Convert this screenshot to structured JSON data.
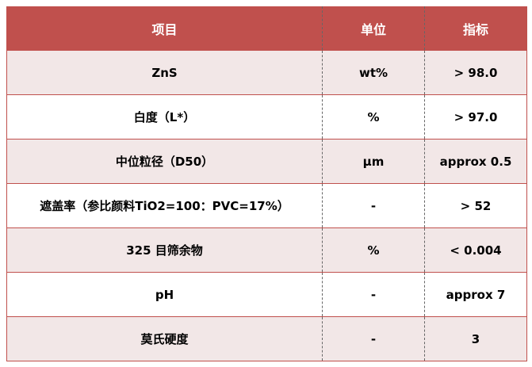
{
  "header": {
    "item": "项目",
    "unit": "单位",
    "spec": "指标"
  },
  "rows": [
    {
      "item": "ZnS",
      "unit": "wt%",
      "spec": "> 98.0"
    },
    {
      "item": "白度（L*）",
      "unit": "%",
      "spec": "> 97.0"
    },
    {
      "item": "中位粒径（D50）",
      "unit": "µm",
      "spec": "approx 0.5"
    },
    {
      "item": "遮盖率（参比颜料TiO2=100：PVC=17%）",
      "unit": "-",
      "spec": "> 52"
    },
    {
      "item": "325 目筛余物",
      "unit": "%",
      "spec": "< 0.004"
    },
    {
      "item": "pH",
      "unit": "-",
      "spec": "approx 7"
    },
    {
      "item": "莫氏硬度",
      "unit": "-",
      "spec": "3"
    }
  ],
  "colors": {
    "header": "#c0504d",
    "row_alt": "#f2e7e7"
  }
}
